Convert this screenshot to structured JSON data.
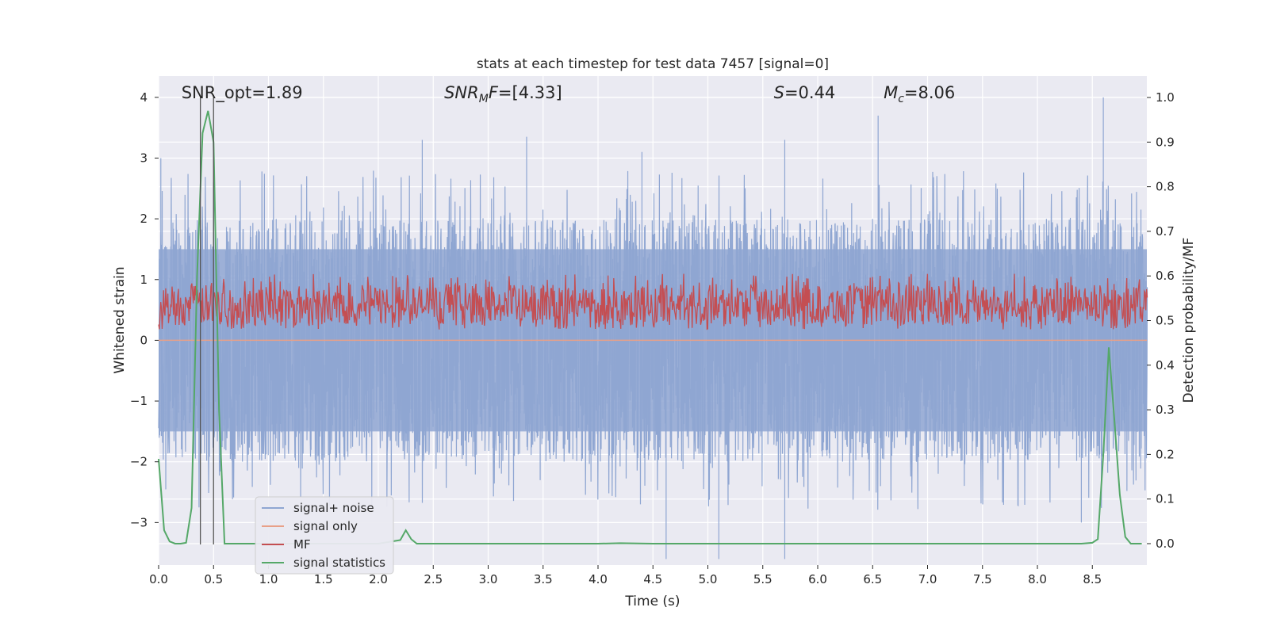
{
  "chart_data": {
    "type": "line",
    "title": "stats at each timestep for test data 7457 [signal=0]",
    "xlabel": "Time (s)",
    "ylabel_left": "Whitened strain",
    "ylabel_right": "Detection probability/MF",
    "xlim": [
      0.0,
      9.0
    ],
    "ylim_left": [
      -3.7,
      4.35
    ],
    "ylim_right": [
      -0.048,
      1.048
    ],
    "x_ticks": [
      "0.0",
      "0.5",
      "1.0",
      "1.5",
      "2.0",
      "2.5",
      "3.0",
      "3.5",
      "4.0",
      "4.5",
      "5.0",
      "5.5",
      "6.0",
      "6.5",
      "7.0",
      "7.5",
      "8.0",
      "8.5"
    ],
    "y_ticks_left": [
      "−3",
      "−2",
      "−1",
      "0",
      "1",
      "2",
      "3",
      "4"
    ],
    "y_ticks_right": [
      "0.0",
      "0.1",
      "0.2",
      "0.3",
      "0.4",
      "0.5",
      "0.6",
      "0.7",
      "0.8",
      "0.9",
      "1.0"
    ],
    "grid": true,
    "background": "#eaeaf2",
    "annotations": [
      {
        "label": "SNR_opt=1.89",
        "x": 0.2
      },
      {
        "label": "SNR",
        "sub": "M",
        "suffix": "F=[4.33]",
        "italic": true,
        "x": 2.6
      },
      {
        "label": "S",
        "suffix": "=0.44",
        "italic": true,
        "x": 5.6
      },
      {
        "label": "M",
        "sub": "c",
        "suffix": "=8.06",
        "italic": true,
        "x": 6.6
      }
    ],
    "vlines": [
      0.38,
      0.5
    ],
    "series": [
      {
        "name": "signal+ noise",
        "color": "#8fa6d2",
        "axis": "left",
        "kind": "noise",
        "envelope_abs": 1.5,
        "max_peak": 4.0,
        "min_peak": -3.6,
        "notable_peaks": [
          [
            0.02,
            3.0
          ],
          [
            0.5,
            2.6
          ],
          [
            2.4,
            3.3
          ],
          [
            3.35,
            3.35
          ],
          [
            4.4,
            3.1
          ],
          [
            5.7,
            3.3
          ],
          [
            6.55,
            3.7
          ],
          [
            8.6,
            4.0
          ]
        ],
        "notable_troughs": [
          [
            4.62,
            -3.6
          ],
          [
            5.1,
            -3.6
          ],
          [
            5.7,
            -3.6
          ],
          [
            8.4,
            -3.0
          ]
        ]
      },
      {
        "name": "signal only",
        "color": "#e8a088",
        "axis": "left",
        "values_flat": 0.0
      },
      {
        "name": "MF",
        "color": "#c44e52",
        "axis": "right",
        "kind": "band",
        "band": [
          0.49,
          0.58
        ],
        "spike": [
          2.13,
          0.6
        ]
      },
      {
        "name": "signal statistics",
        "color": "#55a868",
        "axis": "right",
        "x": [
          0.0,
          0.05,
          0.1,
          0.15,
          0.2,
          0.25,
          0.3,
          0.35,
          0.4,
          0.45,
          0.5,
          0.55,
          0.6,
          0.65,
          0.7,
          1.0,
          2.0,
          2.2,
          2.25,
          2.3,
          2.35,
          2.4,
          4.0,
          4.2,
          4.5,
          8.4,
          8.5,
          8.55,
          8.6,
          8.65,
          8.7,
          8.75,
          8.8,
          8.85,
          8.9,
          8.95
        ],
        "values": [
          0.19,
          0.03,
          0.005,
          0.0,
          0.0,
          0.002,
          0.08,
          0.6,
          0.92,
          0.97,
          0.9,
          0.3,
          0.0,
          0.0,
          0.0,
          0.0,
          0.0,
          0.008,
          0.03,
          0.01,
          0.0,
          0.0,
          0.0,
          0.001,
          0.0,
          0.0,
          0.002,
          0.01,
          0.2,
          0.44,
          0.28,
          0.11,
          0.015,
          0.0,
          0.0,
          0.0
        ]
      }
    ],
    "legend": {
      "placement": "lower-left",
      "entries": [
        "signal+ noise",
        "signal only",
        "MF",
        "signal statistics"
      ]
    }
  }
}
